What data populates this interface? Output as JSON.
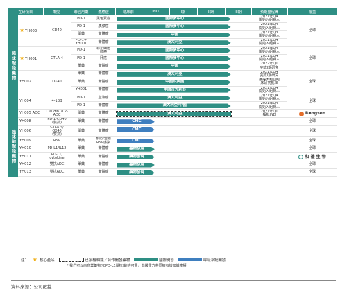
{
  "headers": [
    "在研項目",
    "靶點",
    "聯合用藥",
    "適應症",
    "臨床前",
    "IND",
    "I期",
    "II期",
    "III期",
    "預期里程碑",
    "權益"
  ],
  "groups": [
    "臨床階段藥物",
    "臨床前階段藥物"
  ],
  "rows": [
    {
      "cand": "YH003",
      "star": true,
      "target": "CD40",
      "combo": "PD-1",
      "ind": "黑色素瘤",
      "bar": "國際多中心",
      "milestone": "2021年Q4\n開始入組病人",
      "rights": "全球"
    },
    {
      "cand": "",
      "star": false,
      "target": "",
      "combo": "PD-1",
      "ind": "胰腺癌",
      "bar": "國際多中心",
      "milestone": "2021年Q4\n開始入組病人",
      "rights": ""
    },
    {
      "cand": "",
      "star": false,
      "target": "",
      "combo": "單藥",
      "ind": "實體瘤",
      "bar": "中國",
      "milestone": "2021年Q3\n開始入組病人",
      "rights": ""
    },
    {
      "cand": "",
      "star": false,
      "target": "",
      "combo": "PD-1+\nYH001",
      "ind": "實體瘤",
      "bar": "澳大利亞",
      "milestone": "2021年Q4\n開始入組病人",
      "rights": ""
    },
    {
      "cand": "YH001",
      "star": true,
      "target": "CTLA-4",
      "combo": "PD-1",
      "ind": "非小細胞\n肺癌",
      "bar": "國際多中心",
      "milestone": "2021年Q4\n開始入組病人",
      "rights": "全球"
    },
    {
      "cand": "",
      "star": false,
      "target": "",
      "combo": "PD-1",
      "ind": "肝癌",
      "bar": "國際多中心",
      "milestone": "2021年Q4\n開始入組病人",
      "rights": ""
    },
    {
      "cand": "",
      "star": false,
      "target": "",
      "combo": "單藥",
      "ind": "實體瘤",
      "bar": "中國",
      "milestone": "2022年Q1\n完成I期研究",
      "rights": ""
    },
    {
      "cand": "YH002",
      "star": false,
      "target": "OX40",
      "combo": "單藥",
      "ind": "實體瘤",
      "bar": "澳大利亞",
      "milestone": "2021年Q4\n完成I期研究",
      "rights": "全球"
    },
    {
      "cand": "",
      "star": false,
      "target": "",
      "combo": "單藥",
      "ind": "實體瘤",
      "bar": "中國及美國",
      "milestone": "獲得大利亞臨\n床研究批准",
      "rights": ""
    },
    {
      "cand": "",
      "star": false,
      "target": "",
      "combo": "YH001",
      "ind": "實體瘤",
      "bar": "中國及大利亞",
      "milestone": "2021年Q4\n開始入組病人",
      "rights": ""
    },
    {
      "cand": "YH004",
      "star": false,
      "target": "4-1BB",
      "combo": "PD-1",
      "ind": "血液瘤",
      "bar": "澳大利亞",
      "milestone": "2021年Q4\n開始入組病人",
      "rights": "全球"
    },
    {
      "cand": "",
      "star": false,
      "target": "",
      "combo": "PD-1",
      "ind": "實體瘤",
      "bar": "澳大利亞/中國",
      "milestone": "2021年Q4\n開始入組病人",
      "rights": ""
    },
    {
      "cand": "YH005 ADC",
      "star": false,
      "target": "Claudin18.2-\nADC",
      "combo": "單藥",
      "ind": "實體瘤",
      "bar": "澳大利亞",
      "milestone": "2021年Q1\n獲批IND",
      "rights": ""
    },
    {
      "cand": "YH008",
      "star": false,
      "target": "PD-1/CD40\n(雙抗)",
      "combo": "單藥",
      "ind": "實體瘤",
      "bar": "CMC",
      "milestone": "",
      "rights": "全球"
    },
    {
      "cand": "YH006",
      "star": false,
      "target": "CTLA-4/\nOX40\n(雙抗)",
      "combo": "單藥",
      "ind": "實體瘤",
      "bar": "CMC",
      "milestone": "",
      "rights": "全球"
    },
    {
      "cand": "YH009",
      "star": false,
      "target": "RSV",
      "combo": "單藥",
      "ind": "預防/治療\nRSV感染",
      "bar": "CMC",
      "milestone": "",
      "rights": "全球"
    },
    {
      "cand": "YH010",
      "star": false,
      "target": "PD-L1/IL12",
      "combo": "單藥",
      "ind": "實體瘤",
      "bar": "藥物發現",
      "milestone": "",
      "rights": "全球"
    },
    {
      "cand": "YH011",
      "star": false,
      "target": "PD-L1/\ncytokine",
      "combo": "單藥",
      "ind": "實體瘤",
      "bar": "藥物發現",
      "milestone": "",
      "rights": ""
    },
    {
      "cand": "YH012",
      "star": false,
      "target": "雙抗ADC",
      "combo": "單藥",
      "ind": "實體瘤",
      "bar": "藥物發現",
      "milestone": "",
      "rights": "全球"
    },
    {
      "cand": "YH013",
      "star": false,
      "target": "雙抗ADC",
      "combo": "單藥",
      "ind": "實體瘤",
      "bar": "藥物發現",
      "milestone": "",
      "rights": "全球"
    }
  ],
  "bar_progress": [
    0.86,
    0.86,
    0.86,
    0.86,
    0.86,
    0.86,
    0.86,
    0.86,
    0.86,
    0.86,
    0.86,
    0.86,
    0.86,
    0.3,
    0.3,
    0.3,
    0.3,
    0.3,
    0.3,
    0.3
  ],
  "partner_logos": [
    {
      "row": 12,
      "text": "Rongsen"
    },
    {
      "row": 17,
      "text": "和 禮 生 物"
    }
  ],
  "legend": {
    "note": "註：",
    "star": "核心產品",
    "dashed": "已授權轉讓／合作開發藥物",
    "green": "國際開發",
    "blue": "呼吸系統開發"
  },
  "footnote": "* 我們可以向商業藥物(如PD-L1單抗)的許可費，向嚴重方共同擁有該知識產權",
  "source": "資料來源：公司數據",
  "colors": {
    "accent": "#2e8f84",
    "blue": "#3f7fbf",
    "star": "#f0ae15"
  }
}
